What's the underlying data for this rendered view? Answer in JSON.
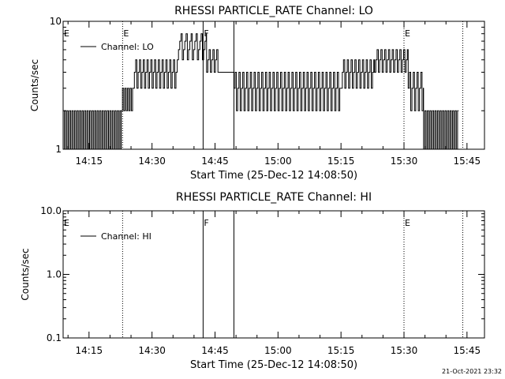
{
  "background_color": "#ffffff",
  "ink_color": "#000000",
  "timestamp": "21-Oct-2021 23:32",
  "chart_data": [
    {
      "type": "line",
      "title": "RHESSI PARTICLE_RATE Channel: LO",
      "xlabel": "Start Time (25-Dec-12 14:08:50)",
      "ylabel": "Counts/sec",
      "y_scale": "log",
      "ylim": [
        1,
        10
      ],
      "y_tick_values": [
        1,
        10
      ],
      "y_tick_labels": [
        "1",
        "10"
      ],
      "xlim": [
        "14:08:50",
        "15:49:10"
      ],
      "x_tick_labels": [
        "14:15",
        "14:30",
        "14:45",
        "15:00",
        "15:15",
        "15:30",
        "15:45"
      ],
      "x_tick_values": [
        "14:15",
        "14:30",
        "14:45",
        "15:00",
        "15:15",
        "15:30",
        "15:45"
      ],
      "legend": {
        "label": "Channel: LO",
        "placement": "top-left"
      },
      "markers": [
        {
          "time": "14:23:00",
          "style": "dotted",
          "label": "E"
        },
        {
          "time": "14:42:10",
          "style": "solid",
          "label": "F"
        },
        {
          "time": "14:49:30",
          "style": "solid",
          "label": ""
        },
        {
          "time": "15:30:00",
          "style": "dotted",
          "label": "E"
        },
        {
          "time": "15:44:00",
          "style": "dotted",
          "label": ""
        }
      ],
      "corner_label": "E",
      "series": [
        {
          "name": "Channel: LO",
          "segments": [
            {
              "from": "14:08:50",
              "to": "14:22:40",
              "pattern": "alternating",
              "values": [
                1,
                2
              ]
            },
            {
              "from": "14:22:40",
              "to": "14:25:30",
              "pattern": "alternating",
              "values": [
                2,
                3
              ]
            },
            {
              "from": "14:25:30",
              "to": "14:36:00",
              "pattern": "alternating",
              "values": [
                3,
                4,
                5
              ]
            },
            {
              "from": "14:36:00",
              "to": "14:43:00",
              "pattern": "alternating",
              "values": [
                5,
                6,
                7,
                8
              ]
            },
            {
              "from": "14:43:00",
              "to": "14:46:00",
              "pattern": "alternating",
              "values": [
                4,
                5,
                6
              ]
            },
            {
              "from": "14:46:00",
              "to": "14:49:30",
              "pattern": "flat",
              "values": [
                4
              ]
            },
            {
              "from": "14:49:30",
              "to": "15:15:00",
              "pattern": "alternating",
              "values": [
                3,
                4,
                2
              ]
            },
            {
              "from": "15:15:00",
              "to": "15:23:00",
              "pattern": "alternating",
              "values": [
                3,
                4,
                5
              ]
            },
            {
              "from": "15:23:00",
              "to": "15:31:00",
              "pattern": "alternating",
              "values": [
                4,
                5,
                6
              ]
            },
            {
              "from": "15:31:00",
              "to": "15:34:40",
              "pattern": "alternating",
              "values": [
                3,
                4,
                2
              ]
            },
            {
              "from": "15:34:40",
              "to": "15:43:00",
              "pattern": "alternating",
              "values": [
                1,
                2
              ]
            }
          ]
        }
      ]
    },
    {
      "type": "line",
      "title": "RHESSI PARTICLE_RATE Channel: HI",
      "xlabel": "Start Time (25-Dec-12 14:08:50)",
      "ylabel": "Counts/sec",
      "y_scale": "log",
      "ylim": [
        0.1,
        10
      ],
      "y_tick_values": [
        0.1,
        1,
        10
      ],
      "y_tick_labels": [
        "0.1",
        "1.0",
        "10.0"
      ],
      "xlim": [
        "14:08:50",
        "15:49:10"
      ],
      "x_tick_labels": [
        "14:15",
        "14:30",
        "14:45",
        "15:00",
        "15:15",
        "15:30",
        "15:45"
      ],
      "x_tick_values": [
        "14:15",
        "14:30",
        "14:45",
        "15:00",
        "15:15",
        "15:30",
        "15:45"
      ],
      "legend": {
        "label": "Channel: HI",
        "placement": "top-left"
      },
      "markers": [
        {
          "time": "14:23:00",
          "style": "dotted",
          "label": ""
        },
        {
          "time": "14:42:10",
          "style": "solid",
          "label": "F"
        },
        {
          "time": "14:49:30",
          "style": "solid",
          "label": ""
        },
        {
          "time": "15:30:00",
          "style": "dotted",
          "label": "E"
        },
        {
          "time": "15:44:00",
          "style": "dotted",
          "label": ""
        }
      ],
      "corner_label": "E",
      "series": [
        {
          "name": "Channel: HI",
          "segments": []
        }
      ]
    }
  ]
}
